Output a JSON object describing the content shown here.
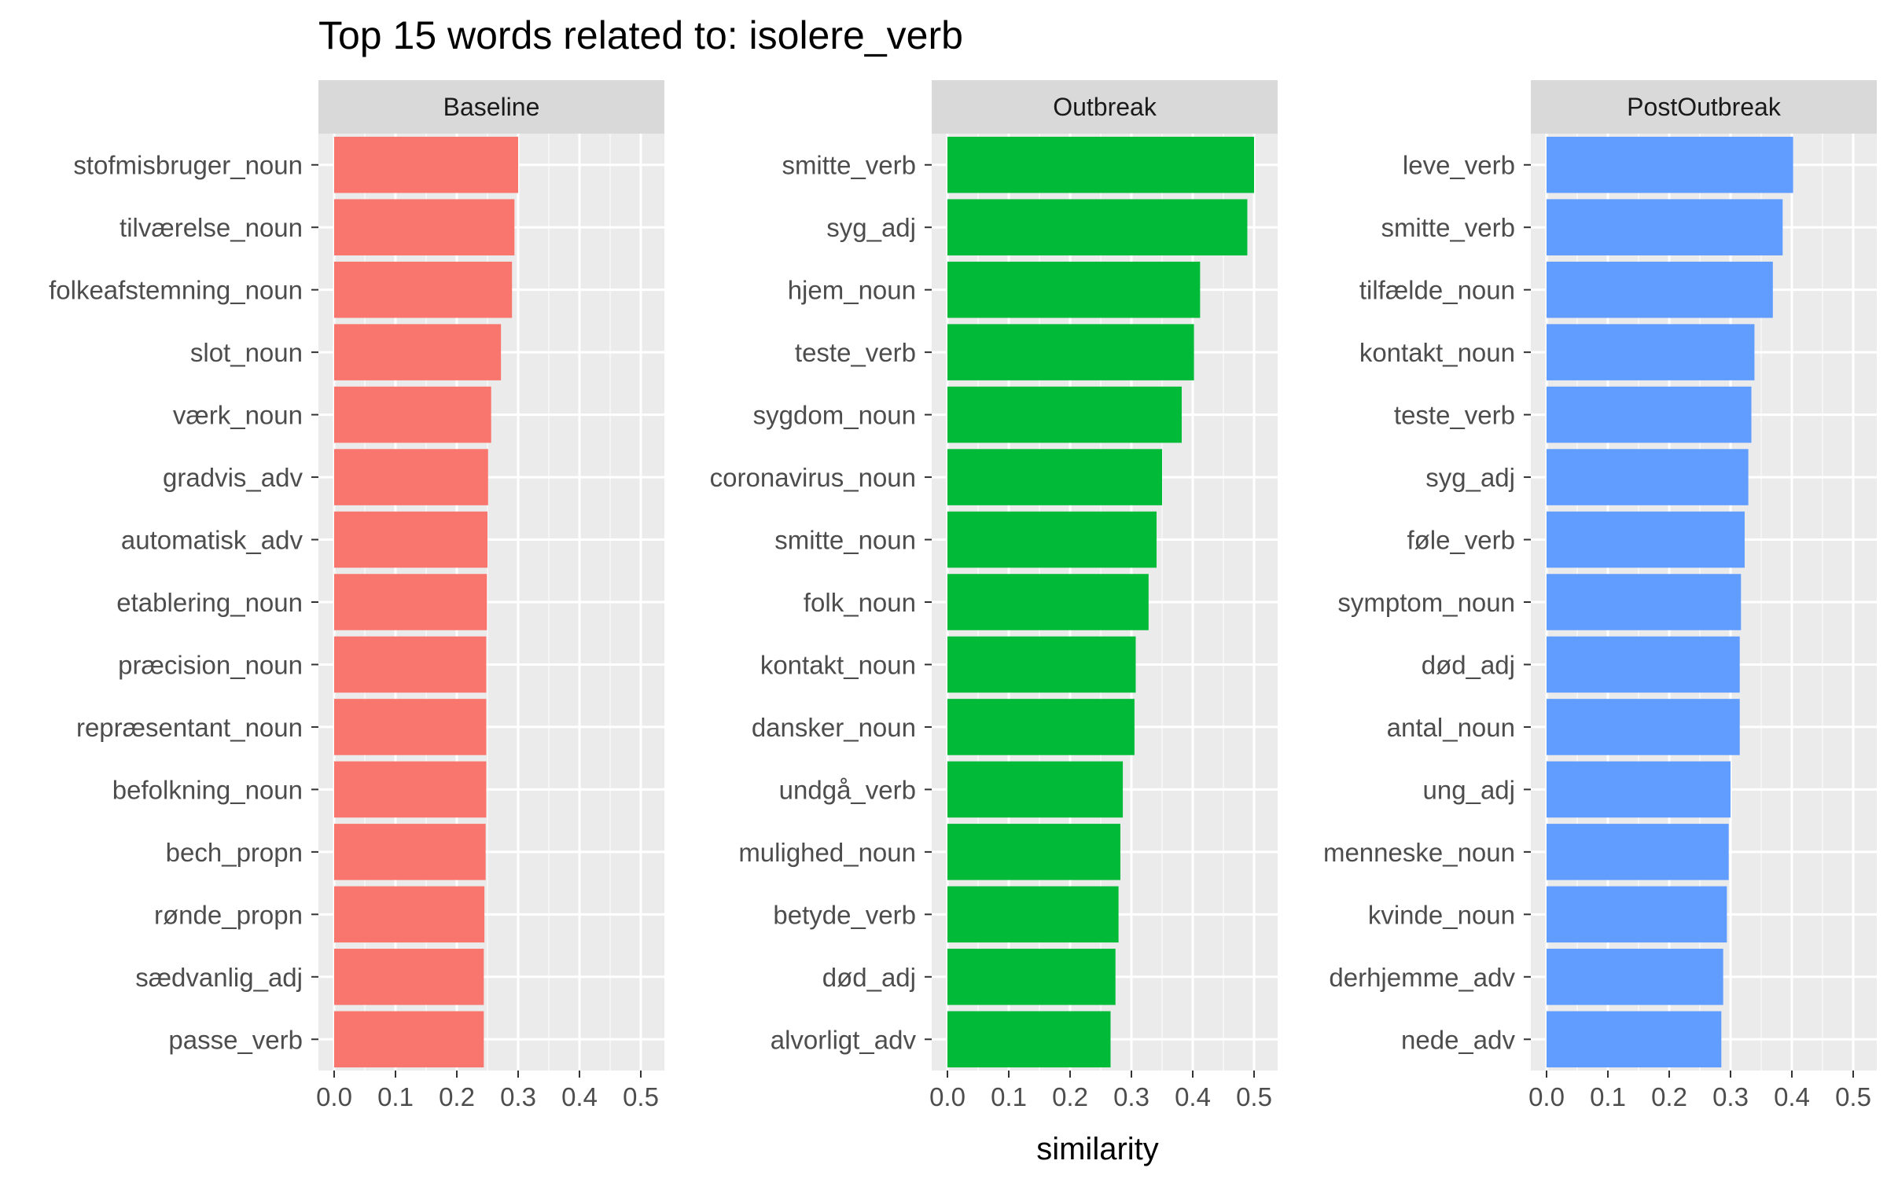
{
  "chart_data": {
    "type": "bar",
    "orientation": "horizontal",
    "title": "Top 15 words related to: isolere_verb",
    "xlabel": "similarity",
    "ylabel": "",
    "xlim": [
      0,
      0.5
    ],
    "xticks": [
      "0.0",
      "0.1",
      "0.2",
      "0.3",
      "0.4",
      "0.5"
    ],
    "grid": true,
    "legend": "none",
    "panels": [
      {
        "name": "Baseline",
        "color": "#F8766D",
        "categories": [
          "stofmisbruger_noun",
          "tilværelse_noun",
          "folkeafstemning_noun",
          "slot_noun",
          "værk_noun",
          "gradvis_adv",
          "automatisk_adv",
          "etablering_noun",
          "præcision_noun",
          "repræsentant_noun",
          "befolkning_noun",
          "bech_propn",
          "rønde_propn",
          "sædvanlig_adj",
          "passe_verb"
        ],
        "values": [
          0.3,
          0.294,
          0.29,
          0.272,
          0.256,
          0.251,
          0.25,
          0.249,
          0.248,
          0.248,
          0.248,
          0.247,
          0.245,
          0.244,
          0.244
        ]
      },
      {
        "name": "Outbreak",
        "color": "#00BA38",
        "categories": [
          "smitte_verb",
          "syg_adj",
          "hjem_noun",
          "teste_verb",
          "sygdom_noun",
          "coronavirus_noun",
          "smitte_noun",
          "folk_noun",
          "kontakt_noun",
          "dansker_noun",
          "undgå_verb",
          "mulighed_noun",
          "betyde_verb",
          "død_adj",
          "alvorligt_adv"
        ],
        "values": [
          0.5,
          0.489,
          0.412,
          0.402,
          0.382,
          0.35,
          0.341,
          0.328,
          0.307,
          0.305,
          0.286,
          0.282,
          0.279,
          0.274,
          0.266
        ]
      },
      {
        "name": "PostOutbreak",
        "color": "#619CFF",
        "categories": [
          "leve_verb",
          "smitte_verb",
          "tilfælde_noun",
          "kontakt_noun",
          "teste_verb",
          "syg_adj",
          "føle_verb",
          "symptom_noun",
          "død_adj",
          "antal_noun",
          "ung_adj",
          "menneske_noun",
          "kvinde_noun",
          "derhjemme_adv",
          "nede_adv"
        ],
        "values": [
          0.402,
          0.385,
          0.369,
          0.339,
          0.334,
          0.329,
          0.323,
          0.317,
          0.315,
          0.315,
          0.3,
          0.297,
          0.294,
          0.288,
          0.285
        ]
      }
    ]
  }
}
